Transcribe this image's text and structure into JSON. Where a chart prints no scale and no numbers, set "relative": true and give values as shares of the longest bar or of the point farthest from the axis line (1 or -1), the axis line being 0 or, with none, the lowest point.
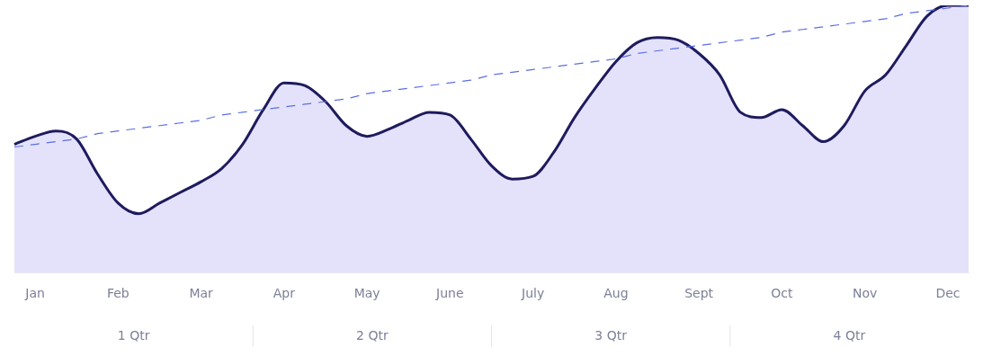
{
  "chart_data": {
    "type": "area",
    "relative": true,
    "categories": [
      null,
      "Jan",
      null,
      null,
      null,
      "Feb",
      null,
      null,
      null,
      "Mar",
      null,
      null,
      null,
      "Apr",
      null,
      null,
      null,
      "May",
      null,
      null,
      null,
      "June",
      null,
      null,
      null,
      "July",
      null,
      null,
      null,
      "Aug",
      null,
      null,
      null,
      "Sept",
      null,
      null,
      null,
      "Oct",
      null,
      null,
      null,
      "Nov",
      null,
      null,
      null,
      "Dec",
      null
    ],
    "annotations": [
      "1 Qtr",
      "2 Qtr",
      "3 Qtr",
      "4 Qtr"
    ],
    "series": [
      {
        "color": "#1e1b5e",
        "values": [
          0.48,
          0.51,
          0.53,
          0.5,
          0.37,
          0.26,
          0.22,
          0.26,
          0.3,
          0.34,
          0.39,
          0.48,
          0.61,
          0.71,
          0.7,
          0.64,
          0.55,
          0.51,
          0.535,
          0.57,
          0.6,
          0.59,
          0.5,
          0.4,
          0.35,
          0.36,
          0.45,
          0.58,
          0.69,
          0.79,
          0.86,
          0.88,
          0.87,
          0.82,
          0.74,
          0.6,
          0.58,
          0.61,
          0.55,
          0.49,
          0.55,
          0.68,
          0.74,
          0.85,
          0.96,
          1.0,
          1.0
        ]
      },
      {
        "type": "line",
        "color": "#5b6ee1",
        "line_style": "dashed",
        "values": [
          0.47,
          0.48,
          0.49,
          0.5,
          0.52,
          0.53,
          0.54,
          0.55,
          0.56,
          0.57,
          0.59,
          0.6,
          0.61,
          0.62,
          0.63,
          0.64,
          0.65,
          0.67,
          0.68,
          0.69,
          0.7,
          0.71,
          0.72,
          0.74,
          0.75,
          0.76,
          0.77,
          0.78,
          0.79,
          0.8,
          0.82,
          0.83,
          0.84,
          0.85,
          0.86,
          0.87,
          0.88,
          0.9,
          0.91,
          0.92,
          0.93,
          0.94,
          0.95,
          0.97,
          0.98,
          0.99,
          1.0
        ]
      }
    ]
  }
}
